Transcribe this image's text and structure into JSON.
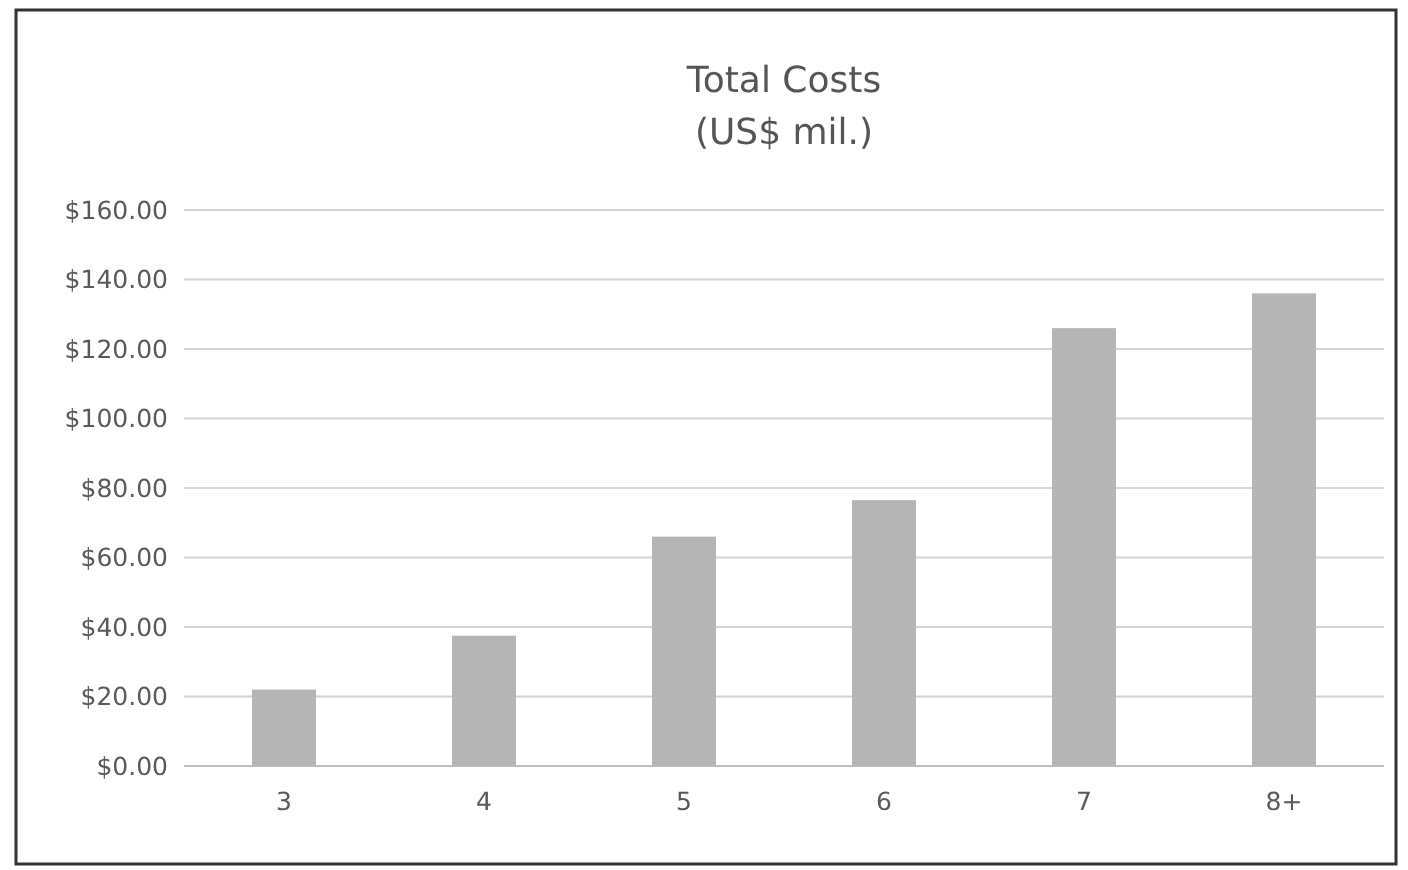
{
  "chart_data": {
    "type": "bar",
    "title": "Total Costs",
    "subtitle": "(US$ mil.)",
    "categories": [
      "3",
      "4",
      "5",
      "6",
      "7",
      "8+"
    ],
    "values": [
      22,
      37.5,
      66,
      76.5,
      126,
      136
    ],
    "color": "#b5b5b5",
    "ylim": [
      0,
      160
    ],
    "yticks": [
      {
        "value": 0,
        "label": "$0.00"
      },
      {
        "value": 20,
        "label": "$20.00"
      },
      {
        "value": 40,
        "label": "$40.00"
      },
      {
        "value": 60,
        "label": "$60.00"
      },
      {
        "value": 80,
        "label": "$80.00"
      },
      {
        "value": 100,
        "label": "$100.00"
      },
      {
        "value": 120,
        "label": "$120.00"
      },
      {
        "value": 140,
        "label": "$140.00"
      },
      {
        "value": 160,
        "label": "$160.00"
      }
    ],
    "grid": "y"
  }
}
